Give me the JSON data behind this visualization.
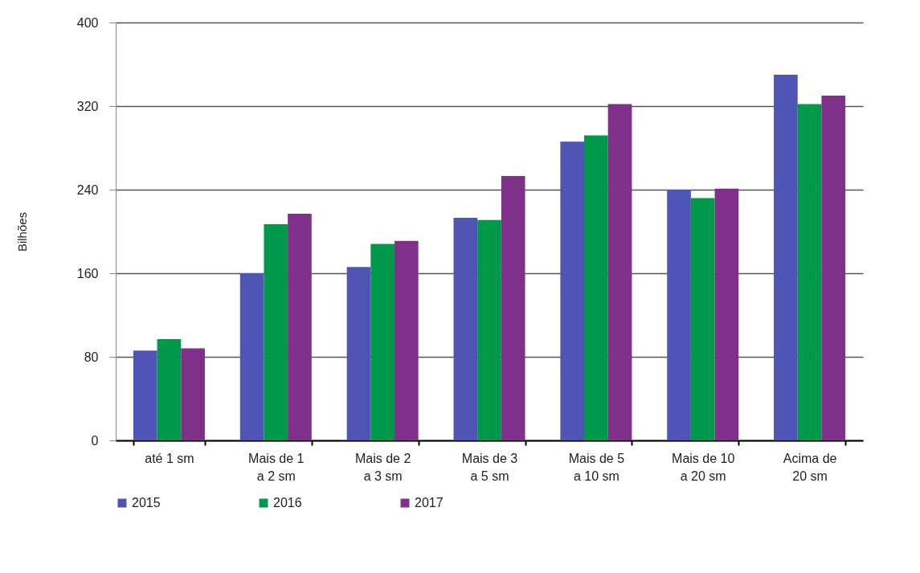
{
  "chart_data": {
    "type": "bar",
    "ylabel": "Bilhões",
    "categories": [
      "até 1 sm",
      "Mais de 1\na 2 sm",
      "Mais de 2\na 3 sm",
      "Mais de 3\na 5 sm",
      "Mais de 5\na 10 sm",
      "Mais de 10\na 20 sm",
      "Acima de\n20 sm"
    ],
    "series": [
      {
        "name": "2015",
        "color": "#4f55b5",
        "values": [
          86,
          160,
          166,
          213,
          286,
          240,
          350
        ]
      },
      {
        "name": "2016",
        "color": "#00994a",
        "values": [
          97,
          207,
          188,
          211,
          292,
          232,
          322
        ]
      },
      {
        "name": "2017",
        "color": "#7f3189",
        "values": [
          88,
          217,
          191,
          253,
          322,
          241,
          330
        ]
      }
    ],
    "ylim": [
      0,
      400
    ],
    "yticks": [
      0,
      80,
      160,
      240,
      320,
      400
    ],
    "grid": "y",
    "legend": "bottom"
  }
}
